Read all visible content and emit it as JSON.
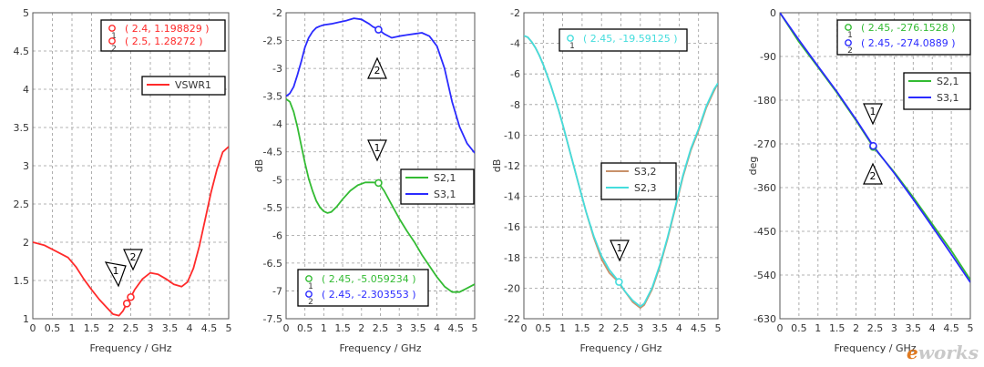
{
  "watermark": {
    "prefix": "e",
    "text": "works"
  },
  "colors": {
    "axis": "#333333",
    "grid": "#9a9a9a",
    "frame": "#000000",
    "red": "#ff2a2a",
    "blue": "#2b2bff",
    "green": "#33bb33",
    "brown": "#c8916a",
    "cyan": "#44dddd"
  },
  "chart_data": [
    {
      "type": "line",
      "xlabel": "Frequency / GHz",
      "ylabel": "",
      "xlim": [
        0,
        5
      ],
      "ylim": [
        1,
        5
      ],
      "xticks": [
        "0",
        "0.5",
        "1",
        "1.5",
        "2",
        "2.5",
        "3",
        "3.5",
        "4",
        "4.5",
        "5"
      ],
      "yticks": [
        "1",
        "1.5",
        "2",
        "2.5",
        "3",
        "3.5",
        "4",
        "4.5",
        "5"
      ],
      "grid": true,
      "legend_position": "top-right",
      "series": [
        {
          "name": "VSWR1",
          "color": "#ff2a2a",
          "x": [
            0,
            0.3,
            0.6,
            0.9,
            1.1,
            1.3,
            1.5,
            1.7,
            1.9,
            2.05,
            2.2,
            2.3,
            2.4,
            2.5,
            2.6,
            2.8,
            3.0,
            3.2,
            3.4,
            3.6,
            3.8,
            3.95,
            4.1,
            4.25,
            4.4,
            4.55,
            4.7,
            4.85,
            5.0
          ],
          "y": [
            2.0,
            1.96,
            1.88,
            1.8,
            1.68,
            1.52,
            1.38,
            1.25,
            1.14,
            1.06,
            1.04,
            1.1,
            1.2,
            1.28,
            1.38,
            1.52,
            1.6,
            1.58,
            1.52,
            1.45,
            1.42,
            1.48,
            1.66,
            1.95,
            2.3,
            2.65,
            2.95,
            3.18,
            3.25
          ]
        }
      ],
      "markers": [
        {
          "id": "1",
          "x": 2.4,
          "y": 1.198829,
          "label": "( 2.4, 1.198829 )",
          "color": "#ff2a2a"
        },
        {
          "id": "2",
          "x": 2.5,
          "y": 1.28272,
          "label": "( 2.5, 1.28272 )",
          "color": "#ff2a2a"
        }
      ]
    },
    {
      "type": "line",
      "xlabel": "Frequency / GHz",
      "ylabel": "dB",
      "xlim": [
        0,
        5
      ],
      "ylim": [
        -7.5,
        -2
      ],
      "xticks": [
        "0",
        "0.5",
        "1",
        "1.5",
        "2",
        "2.5",
        "3",
        "3.5",
        "4",
        "4.5",
        "5"
      ],
      "yticks": [
        "-2",
        "-2.5",
        "-3",
        "-3.5",
        "-4",
        "-4.5",
        "-5",
        "-5.5",
        "-6",
        "-6.5",
        "-7",
        "-7.5"
      ],
      "grid": true,
      "legend_position": "center-right",
      "series": [
        {
          "name": "S2,1",
          "color": "#33bb33",
          "x": [
            0,
            0.1,
            0.2,
            0.3,
            0.4,
            0.5,
            0.6,
            0.7,
            0.8,
            0.9,
            1.0,
            1.1,
            1.2,
            1.35,
            1.5,
            1.7,
            1.9,
            2.1,
            2.3,
            2.45,
            2.6,
            2.8,
            3.0,
            3.2,
            3.4,
            3.6,
            3.8,
            4.0,
            4.2,
            4.4,
            4.6,
            4.8,
            5.0
          ],
          "y": [
            -3.55,
            -3.6,
            -3.78,
            -4.05,
            -4.38,
            -4.7,
            -4.98,
            -5.2,
            -5.38,
            -5.5,
            -5.57,
            -5.6,
            -5.58,
            -5.48,
            -5.35,
            -5.2,
            -5.1,
            -5.05,
            -5.05,
            -5.06,
            -5.2,
            -5.45,
            -5.7,
            -5.92,
            -6.12,
            -6.35,
            -6.55,
            -6.75,
            -6.92,
            -7.02,
            -7.02,
            -6.95,
            -6.88
          ]
        },
        {
          "name": "S3,1",
          "color": "#2b2bff",
          "x": [
            0,
            0.1,
            0.2,
            0.3,
            0.4,
            0.5,
            0.6,
            0.7,
            0.8,
            0.9,
            1.0,
            1.2,
            1.4,
            1.6,
            1.8,
            2.0,
            2.2,
            2.3,
            2.45,
            2.6,
            2.8,
            3.0,
            3.2,
            3.4,
            3.6,
            3.8,
            4.0,
            4.2,
            4.4,
            4.6,
            4.8,
            5.0
          ],
          "y": [
            -3.5,
            -3.45,
            -3.33,
            -3.12,
            -2.88,
            -2.62,
            -2.45,
            -2.34,
            -2.27,
            -2.24,
            -2.22,
            -2.2,
            -2.17,
            -2.14,
            -2.1,
            -2.12,
            -2.2,
            -2.25,
            -2.3,
            -2.38,
            -2.45,
            -2.42,
            -2.4,
            -2.38,
            -2.36,
            -2.42,
            -2.6,
            -3.0,
            -3.6,
            -4.05,
            -4.35,
            -4.52
          ]
        }
      ],
      "markers": [
        {
          "id": "1",
          "x": 2.45,
          "y": -5.059234,
          "label": "( 2.45, -5.059234 )",
          "color": "#33bb33"
        },
        {
          "id": "2",
          "x": 2.45,
          "y": -2.303553,
          "label": "( 2.45, -2.303553 )",
          "color": "#2b2bff"
        }
      ]
    },
    {
      "type": "line",
      "xlabel": "Frequency / GHz",
      "ylabel": "dB",
      "xlim": [
        0,
        5
      ],
      "ylim": [
        -22,
        -2
      ],
      "xticks": [
        "0",
        "0.5",
        "1",
        "1.5",
        "2",
        "2.5",
        "3",
        "3.5",
        "4",
        "4.5",
        "5"
      ],
      "yticks": [
        "-2",
        "-4",
        "-6",
        "-8",
        "-10",
        "-12",
        "-14",
        "-16",
        "-18",
        "-20",
        "-22"
      ],
      "grid": true,
      "legend_position": "center",
      "series": [
        {
          "name": "S3,2",
          "color": "#c8916a",
          "x": [
            0,
            0.1,
            0.2,
            0.3,
            0.4,
            0.5,
            0.6,
            0.7,
            0.8,
            0.9,
            1.0,
            1.2,
            1.4,
            1.6,
            1.8,
            2.0,
            2.2,
            2.4,
            2.6,
            2.8,
            3.0,
            3.1,
            3.3,
            3.5,
            3.7,
            3.9,
            4.1,
            4.3,
            4.5,
            4.7,
            4.9,
            5.0
          ],
          "y": [
            -3.5,
            -3.6,
            -3.9,
            -4.3,
            -4.8,
            -5.4,
            -6.1,
            -6.8,
            -7.6,
            -8.4,
            -9.3,
            -11.2,
            -13.1,
            -15.0,
            -16.7,
            -18.1,
            -19.0,
            -19.5,
            -20.2,
            -20.9,
            -21.3,
            -21.1,
            -20.1,
            -18.6,
            -16.8,
            -14.8,
            -12.7,
            -11.0,
            -9.7,
            -8.2,
            -7.1,
            -6.6
          ]
        },
        {
          "name": "S2,3",
          "color": "#44dddd",
          "x": [
            0,
            0.1,
            0.2,
            0.3,
            0.4,
            0.5,
            0.6,
            0.7,
            0.8,
            0.9,
            1.0,
            1.2,
            1.4,
            1.6,
            1.8,
            2.0,
            2.2,
            2.45,
            2.6,
            2.8,
            3.0,
            3.1,
            3.3,
            3.5,
            3.7,
            3.9,
            4.1,
            4.3,
            4.5,
            4.7,
            4.9,
            5.0
          ],
          "y": [
            -3.5,
            -3.6,
            -3.9,
            -4.3,
            -4.8,
            -5.4,
            -6.1,
            -6.8,
            -7.6,
            -8.4,
            -9.3,
            -11.2,
            -13.1,
            -15.0,
            -16.6,
            -17.9,
            -18.8,
            -19.59,
            -20.2,
            -20.8,
            -21.2,
            -21.0,
            -20.0,
            -18.5,
            -16.7,
            -14.7,
            -12.6,
            -10.9,
            -9.6,
            -8.1,
            -7.0,
            -6.6
          ]
        }
      ],
      "markers": [
        {
          "id": "1",
          "x": 2.45,
          "y": -19.59125,
          "label": "( 2.45, -19.59125 )",
          "color": "#44dddd"
        }
      ]
    },
    {
      "type": "line",
      "xlabel": "Frequency / GHz",
      "ylabel": "deg",
      "xlim": [
        0,
        5
      ],
      "ylim": [
        -630,
        0
      ],
      "xticks": [
        "0",
        "0.5",
        "1",
        "1.5",
        "2",
        "2.5",
        "3",
        "3.5",
        "4",
        "4.5",
        "5"
      ],
      "yticks": [
        "0",
        "-90",
        "-180",
        "-270",
        "-360",
        "-450",
        "-540",
        "-630"
      ],
      "grid": true,
      "legend_position": "top-right",
      "series": [
        {
          "name": "S2,1",
          "color": "#33bb33",
          "x": [
            0,
            0.5,
            1.0,
            1.5,
            2.0,
            2.45,
            3.0,
            3.5,
            4.0,
            4.5,
            5.0
          ],
          "y": [
            0,
            -60,
            -112,
            -165,
            -222,
            -276.15,
            -328,
            -380,
            -435,
            -490,
            -550
          ]
        },
        {
          "name": "S3,1",
          "color": "#2b2bff",
          "x": [
            0,
            0.5,
            1.0,
            1.5,
            2.0,
            2.45,
            3.0,
            3.5,
            4.0,
            4.5,
            5.0
          ],
          "y": [
            0,
            -56,
            -110,
            -163,
            -220,
            -274.09,
            -330,
            -384,
            -440,
            -497,
            -555
          ]
        }
      ],
      "markers": [
        {
          "id": "1",
          "x": 2.45,
          "y": -276.1528,
          "label": "( 2.45, -276.1528 )",
          "color": "#33bb33"
        },
        {
          "id": "2",
          "x": 2.45,
          "y": -274.0889,
          "label": "( 2.45, -274.0889 )",
          "color": "#2b2bff"
        }
      ]
    }
  ]
}
